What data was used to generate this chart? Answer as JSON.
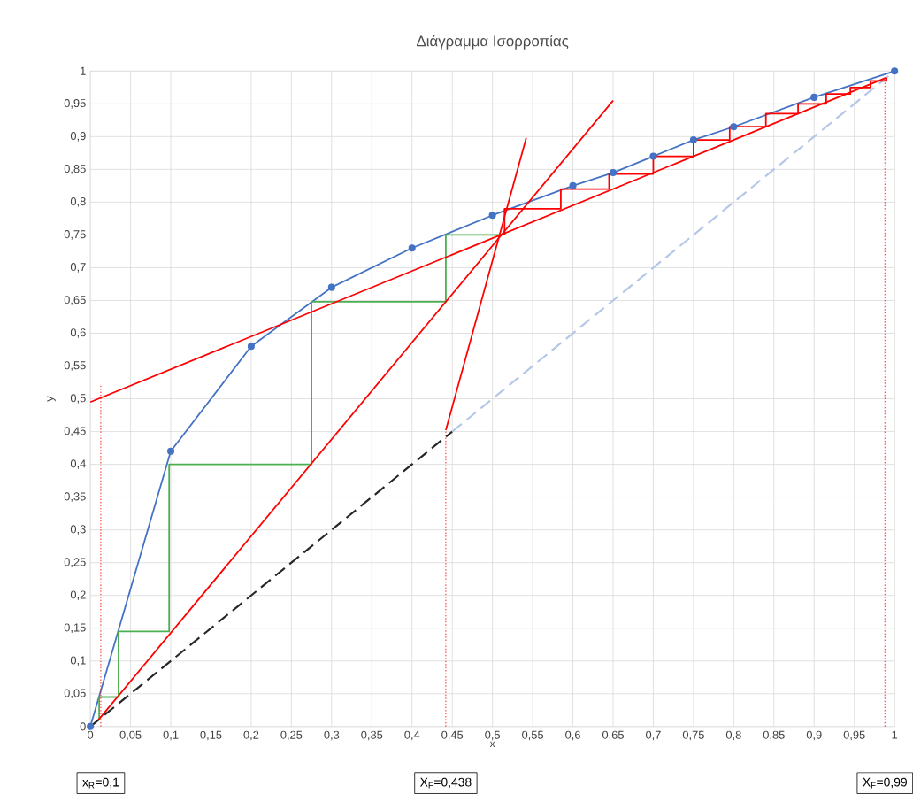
{
  "chart_data": {
    "type": "line",
    "title": "Διάγραμμα Ισορροπίας",
    "xlabel": "x",
    "ylabel": "y",
    "xlim": [
      0,
      1
    ],
    "ylim": [
      0,
      1
    ],
    "xticks": [
      0,
      {
        "value": 0.05,
        "label": "0,05"
      },
      {
        "value": 0.1,
        "label": "0,1"
      },
      {
        "value": 0.15,
        "label": "0,15"
      },
      {
        "value": 0.2,
        "label": "0,2"
      },
      {
        "value": 0.25,
        "label": "0,25"
      },
      {
        "value": 0.3,
        "label": "0,3"
      },
      {
        "value": 0.35,
        "label": "0,35"
      },
      {
        "value": 0.4,
        "label": "0,4"
      },
      {
        "value": 0.45,
        "label": "0,45"
      },
      {
        "value": 0.5,
        "label": "0,5"
      },
      {
        "value": 0.55,
        "label": "0,55"
      },
      {
        "value": 0.6,
        "label": "0,6"
      },
      {
        "value": 0.65,
        "label": "0,65"
      },
      {
        "value": 0.7,
        "label": "0,7"
      },
      {
        "value": 0.75,
        "label": "0,75"
      },
      {
        "value": 0.8,
        "label": "0,8"
      },
      {
        "value": 0.85,
        "label": "0,85"
      },
      {
        "value": 0.9,
        "label": "0,9"
      },
      {
        "value": 0.95,
        "label": "0,95"
      },
      1
    ],
    "yticks": [
      0,
      {
        "value": 0.05,
        "label": "0,05"
      },
      {
        "value": 0.1,
        "label": "0,1"
      },
      {
        "value": 0.15,
        "label": "0,15"
      },
      {
        "value": 0.2,
        "label": "0,2"
      },
      {
        "value": 0.25,
        "label": "0,25"
      },
      {
        "value": 0.3,
        "label": "0,3"
      },
      {
        "value": 0.35,
        "label": "0,35"
      },
      {
        "value": 0.4,
        "label": "0,4"
      },
      {
        "value": 0.45,
        "label": "0,45"
      },
      {
        "value": 0.5,
        "label": "0,5"
      },
      {
        "value": 0.55,
        "label": "0,55"
      },
      {
        "value": 0.6,
        "label": "0,6"
      },
      {
        "value": 0.65,
        "label": "0,65"
      },
      {
        "value": 0.7,
        "label": "0,7"
      },
      {
        "value": 0.75,
        "label": "0,75"
      },
      {
        "value": 0.8,
        "label": "0,8"
      },
      {
        "value": 0.85,
        "label": "0,85"
      },
      {
        "value": 0.9,
        "label": "0,9"
      },
      {
        "value": 0.95,
        "label": "0,95"
      },
      1
    ],
    "grid": true,
    "series": [
      {
        "color": "#262626",
        "line_style": "dashed",
        "marker": "none",
        "x": [
          0,
          0.45
        ],
        "values": [
          0,
          0.45
        ]
      },
      {
        "color": "#b4c7e7",
        "line_style": "dashed",
        "marker": "none",
        "x": [
          0.45,
          1
        ],
        "values": [
          0.45,
          1
        ]
      },
      {
        "color": "#4472c4",
        "line_style": "solid",
        "marker": "circle",
        "x": [
          0,
          0.1,
          0.2,
          0.3,
          0.4,
          0.5,
          0.6,
          0.65,
          0.7,
          0.75,
          0.8,
          0.9,
          1
        ],
        "values": [
          0,
          0.42,
          0.58,
          0.67,
          0.73,
          0.78,
          0.825,
          0.845,
          0.87,
          0.895,
          0.915,
          0.96,
          1
        ]
      },
      {
        "color": "#4caf50",
        "line_style": "solid",
        "marker": "none",
        "x": [
          0.011,
          0.011,
          0.035,
          0.035,
          0.098,
          0.098,
          0.275,
          0.275,
          0.442,
          0.442,
          0.515
        ],
        "values": [
          0.011,
          0.045,
          0.045,
          0.145,
          0.145,
          0.4,
          0.4,
          0.648,
          0.648,
          0.75,
          0.75
        ]
      },
      {
        "color": "#ff0000",
        "line_style": "solid",
        "marker": "none",
        "x": [
          0.515,
          0.515,
          0.585,
          0.585,
          0.645,
          0.645,
          0.7,
          0.7,
          0.75,
          0.75,
          0.795,
          0.795,
          0.84,
          0.84,
          0.88,
          0.88,
          0.915,
          0.915,
          0.945,
          0.945,
          0.97,
          0.97,
          0.99,
          0.99
        ],
        "values": [
          0.75,
          0.79,
          0.79,
          0.82,
          0.82,
          0.843,
          0.843,
          0.87,
          0.87,
          0.895,
          0.895,
          0.915,
          0.915,
          0.935,
          0.935,
          0.95,
          0.95,
          0.965,
          0.965,
          0.975,
          0.975,
          0.985,
          0.985,
          0.99
        ]
      },
      {
        "color": "#ff0000",
        "line_style": "solid",
        "marker": "none",
        "x": [
          0,
          0.99
        ],
        "values": [
          0.495,
          0.99
        ]
      },
      {
        "color": "#ff0000",
        "line_style": "solid",
        "marker": "none",
        "x": [
          0.01,
          0.65
        ],
        "values": [
          0.01,
          0.955
        ]
      },
      {
        "color": "#ff0000",
        "line_style": "solid",
        "marker": "none",
        "x": [
          0.442,
          0.542
        ],
        "values": [
          0.452,
          0.898
        ]
      },
      {
        "color": "#ff0000",
        "line_style": "dotted",
        "marker": "none",
        "x": [
          0.013,
          0.013
        ],
        "values": [
          0,
          0.52
        ]
      },
      {
        "color": "#ff0000",
        "line_style": "dotted",
        "marker": "none",
        "x": [
          0.442,
          0.442
        ],
        "values": [
          0,
          0.45
        ]
      },
      {
        "color": "#ff0000",
        "line_style": "dotted",
        "marker": "none",
        "x": [
          0.988,
          0.988
        ],
        "values": [
          0,
          0.99
        ]
      }
    ],
    "annotations": [
      "x$_{R}$=0,1",
      "X$_{F}$=0,438",
      "X$_{F}$=0,99"
    ]
  }
}
